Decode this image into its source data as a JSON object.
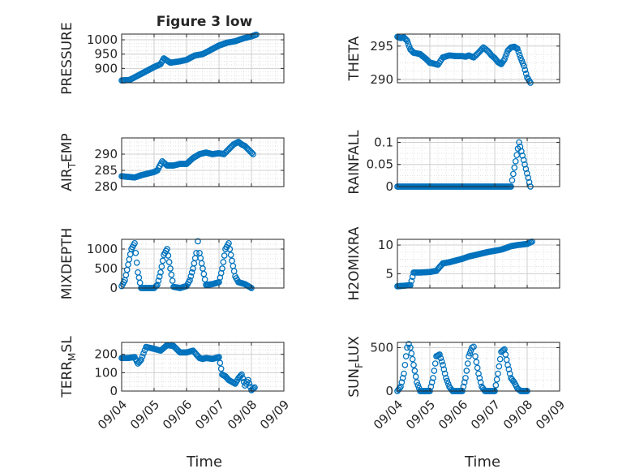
{
  "title": "Figure 3 low",
  "xlabel": "Time",
  "colors": {
    "marker": "#0072BD",
    "axis": "#262626",
    "grid": "#d9d9d9",
    "background": "#ffffff"
  },
  "chart_data": [
    {
      "type": "scatter",
      "ylabel": "PRESSURE",
      "xlim": [
        "09/04",
        "09/09"
      ],
      "ylim": [
        850,
        1020
      ],
      "yticks": [
        900,
        950,
        1000
      ],
      "ytick_labels": [
        "900",
        "950",
        "1000"
      ],
      "x": [
        4.0,
        4.25,
        4.5,
        4.75,
        5.0,
        5.2,
        5.3,
        5.5,
        5.8,
        6.0,
        6.25,
        6.5,
        6.75,
        7.0,
        7.25,
        7.5,
        7.75,
        8.0,
        8.15
      ],
      "y": [
        858,
        860,
        875,
        890,
        905,
        915,
        935,
        920,
        925,
        930,
        945,
        950,
        965,
        980,
        990,
        995,
        1005,
        1012,
        1018
      ],
      "grid": true,
      "minor_grid": true
    },
    {
      "type": "scatter",
      "ylabel": "THETA",
      "xlim": [
        "09/04",
        "09/09"
      ],
      "ylim": [
        289.5,
        296.8
      ],
      "yticks": [
        290,
        295
      ],
      "ytick_labels": [
        "290",
        "295"
      ],
      "x": [
        4.0,
        4.1,
        4.2,
        4.3,
        4.4,
        4.5,
        4.7,
        4.9,
        5.0,
        5.1,
        5.25,
        5.4,
        5.6,
        5.8,
        6.0,
        6.1,
        6.2,
        6.35,
        6.5,
        6.65,
        6.8,
        6.9,
        7.0,
        7.1,
        7.2,
        7.3,
        7.4,
        7.5,
        7.6,
        7.7,
        7.8,
        7.9,
        8.0,
        8.1
      ],
      "y": [
        296.4,
        296.2,
        296.3,
        295.8,
        294.5,
        294.0,
        293.8,
        293.0,
        292.5,
        292.4,
        292.2,
        293.3,
        293.6,
        293.5,
        293.5,
        293.4,
        293.6,
        293.3,
        294.0,
        294.8,
        294.2,
        293.6,
        293.2,
        292.6,
        292.3,
        293.0,
        294.3,
        294.8,
        294.9,
        294.6,
        293.2,
        292.0,
        290.3,
        289.5
      ],
      "grid": true,
      "minor_grid": true
    },
    {
      "type": "scatter",
      "ylabel": "AIR_TEMP",
      "xlim": [
        "09/04",
        "09/09"
      ],
      "ylim": [
        280,
        295
      ],
      "yticks": [
        280,
        285,
        290
      ],
      "ytick_labels": [
        "280",
        "285",
        "290"
      ],
      "x": [
        4.0,
        4.2,
        4.4,
        4.6,
        4.8,
        5.0,
        5.1,
        5.25,
        5.4,
        5.6,
        5.8,
        6.0,
        6.2,
        6.4,
        6.6,
        6.8,
        7.0,
        7.15,
        7.3,
        7.45,
        7.6,
        7.7,
        7.8,
        7.9,
        8.05
      ],
      "y": [
        283.2,
        283.0,
        282.8,
        283.5,
        284.0,
        284.5,
        285.0,
        287.8,
        286.5,
        286.5,
        287.0,
        287.0,
        288.8,
        290.0,
        290.5,
        290.0,
        290.3,
        290.0,
        291.5,
        293.0,
        293.8,
        293.0,
        292.5,
        291.5,
        290.0
      ],
      "grid": true,
      "minor_grid": true
    },
    {
      "type": "scatter",
      "ylabel": "RAINFALL",
      "xlim": [
        "09/04",
        "09/09"
      ],
      "ylim": [
        0,
        0.11
      ],
      "yticks": [
        0,
        0.05,
        0.1
      ],
      "ytick_labels": [
        "0",
        "0.05",
        "0.1"
      ],
      "x": [
        4.0,
        4.5,
        5.0,
        5.5,
        6.0,
        6.5,
        7.0,
        7.5,
        7.75,
        8.1
      ],
      "y": [
        0,
        0,
        0,
        0,
        0,
        0,
        0,
        0,
        0.1,
        0
      ],
      "grid": true,
      "minor_grid": true
    },
    {
      "type": "scatter",
      "ylabel": "MIXDEPTH",
      "xlim": [
        "09/04",
        "09/09"
      ],
      "ylim": [
        0,
        1250
      ],
      "yticks": [
        0,
        500,
        1000
      ],
      "ytick_labels": [
        "0",
        "500",
        "1000"
      ],
      "x": [
        4.0,
        4.1,
        4.2,
        4.3,
        4.4,
        4.5,
        4.6,
        4.8,
        5.0,
        5.1,
        5.2,
        5.3,
        5.4,
        5.5,
        5.6,
        5.8,
        6.0,
        6.1,
        6.2,
        6.3,
        6.35,
        6.4,
        6.5,
        6.6,
        6.8,
        7.0,
        7.1,
        7.2,
        7.3,
        7.4,
        7.5,
        7.6,
        7.8,
        8.0
      ],
      "y": [
        50,
        200,
        600,
        1000,
        1150,
        400,
        0,
        0,
        0,
        80,
        400,
        850,
        1000,
        500,
        30,
        0,
        50,
        200,
        500,
        900,
        1200,
        900,
        500,
        80,
        100,
        150,
        500,
        1000,
        1150,
        700,
        300,
        150,
        100,
        0
      ],
      "grid": true,
      "minor_grid": true
    },
    {
      "type": "scatter",
      "ylabel": "H2OMIXRA",
      "xlim": [
        "09/04",
        "09/09"
      ],
      "ylim": [
        2.5,
        11
      ],
      "yticks": [
        5,
        10
      ],
      "ytick_labels": [
        "5",
        "10"
      ],
      "x": [
        4.0,
        4.2,
        4.4,
        4.5,
        4.7,
        5.0,
        5.2,
        5.4,
        5.6,
        5.8,
        6.0,
        6.2,
        6.5,
        6.8,
        7.0,
        7.2,
        7.5,
        7.7,
        8.0,
        8.15
      ],
      "y": [
        2.8,
        2.9,
        3.0,
        5.2,
        5.2,
        5.3,
        5.5,
        6.8,
        7.0,
        7.3,
        7.6,
        8.0,
        8.4,
        8.8,
        9.0,
        9.2,
        9.8,
        10.0,
        10.2,
        10.6
      ],
      "grid": true,
      "minor_grid": true
    },
    {
      "type": "scatter",
      "ylabel": "TERR_MSL",
      "xlim": [
        "09/04",
        "09/09"
      ],
      "ylim": [
        0,
        265
      ],
      "yticks": [
        0,
        100,
        200
      ],
      "ytick_labels": [
        "0",
        "100",
        "200"
      ],
      "x": [
        4.0,
        4.2,
        4.4,
        4.5,
        4.6,
        4.75,
        5.0,
        5.2,
        5.4,
        5.6,
        5.8,
        6.0,
        6.2,
        6.4,
        6.5,
        6.6,
        6.8,
        7.0,
        7.1,
        7.2,
        7.3,
        7.5,
        7.6,
        7.7,
        7.8,
        7.9,
        8.0,
        8.1
      ],
      "y": [
        180,
        180,
        185,
        150,
        170,
        240,
        230,
        220,
        250,
        245,
        210,
        210,
        220,
        180,
        175,
        180,
        175,
        185,
        90,
        80,
        60,
        40,
        70,
        90,
        30,
        60,
        5,
        20
      ],
      "grid": true,
      "minor_grid": true
    },
    {
      "type": "scatter",
      "ylabel": "SUN_FLUX",
      "xlim": [
        "09/04",
        "09/09"
      ],
      "ylim": [
        0,
        560
      ],
      "yticks": [
        0,
        500
      ],
      "ytick_labels": [
        "0",
        "500"
      ],
      "x": [
        4.0,
        4.1,
        4.2,
        4.3,
        4.35,
        4.4,
        4.5,
        4.6,
        4.7,
        4.8,
        5.0,
        5.1,
        5.2,
        5.3,
        5.4,
        5.5,
        5.6,
        5.7,
        5.8,
        6.0,
        6.1,
        6.2,
        6.3,
        6.35,
        6.4,
        6.5,
        6.6,
        6.7,
        6.8,
        7.0,
        7.1,
        7.2,
        7.3,
        7.4,
        7.5,
        7.6,
        7.7,
        7.8,
        8.0
      ],
      "y": [
        0,
        50,
        200,
        500,
        540,
        500,
        300,
        100,
        0,
        0,
        0,
        150,
        400,
        420,
        300,
        150,
        50,
        0,
        0,
        0,
        150,
        400,
        500,
        510,
        400,
        200,
        50,
        0,
        0,
        0,
        200,
        450,
        480,
        300,
        150,
        100,
        30,
        0,
        0
      ],
      "grid": true,
      "minor_grid": true
    }
  ],
  "xticks": [
    {
      "value": 4,
      "label": "09/04"
    },
    {
      "value": 5,
      "label": "09/05"
    },
    {
      "value": 6,
      "label": "09/06"
    },
    {
      "value": 7,
      "label": "09/07"
    },
    {
      "value": 8,
      "label": "09/08"
    },
    {
      "value": 9,
      "label": "09/09"
    }
  ]
}
